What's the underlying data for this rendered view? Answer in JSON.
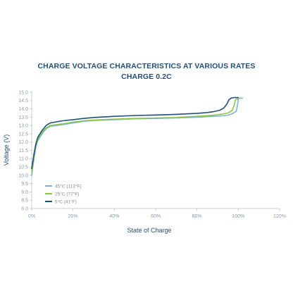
{
  "chart_data": {
    "type": "line",
    "title": "CHARGE VOLTAGE CHARACTERISTICS AT VARIOUS RATES",
    "subtitle": "CHARGE 0.2C",
    "xlabel": "State of Charge",
    "ylabel": "Voltage (V)",
    "xlim": [
      0,
      120
    ],
    "ylim": [
      8.0,
      15.0
    ],
    "x_ticks": [
      "0%",
      "20%",
      "40%",
      "60%",
      "80%",
      "100%",
      "120%"
    ],
    "y_ticks": [
      "8.0",
      "8.5",
      "9.0",
      "9.5",
      "10.0",
      "10.5",
      "11.0",
      "11.5",
      "12.0",
      "12.5",
      "13.0",
      "13.5",
      "14.0",
      "14.5",
      "15.0"
    ],
    "grid": false,
    "legend_position": "bottom-left",
    "series": [
      {
        "name": "45°C (113°F)",
        "color": "#7fb0d8",
        "points": [
          [
            0,
            10.0
          ],
          [
            1,
            10.9
          ],
          [
            2,
            11.7
          ],
          [
            3,
            12.1
          ],
          [
            5,
            12.5
          ],
          [
            7,
            12.8
          ],
          [
            9,
            12.95
          ],
          [
            12,
            13.0
          ],
          [
            15,
            13.05
          ],
          [
            20,
            13.15
          ],
          [
            25,
            13.25
          ],
          [
            30,
            13.3
          ],
          [
            40,
            13.35
          ],
          [
            50,
            13.4
          ],
          [
            60,
            13.42
          ],
          [
            70,
            13.45
          ],
          [
            80,
            13.5
          ],
          [
            88,
            13.55
          ],
          [
            92,
            13.58
          ],
          [
            95,
            13.62
          ],
          [
            97,
            13.7
          ],
          [
            99,
            13.85
          ],
          [
            99.7,
            14.3
          ],
          [
            100,
            14.6
          ],
          [
            101,
            14.65
          ],
          [
            102,
            14.65
          ]
        ]
      },
      {
        "name": "25°C (77°F)",
        "color": "#8cc63f",
        "points": [
          [
            0,
            10.2
          ],
          [
            1,
            11.0
          ],
          [
            2,
            11.8
          ],
          [
            3,
            12.2
          ],
          [
            5,
            12.6
          ],
          [
            7,
            12.85
          ],
          [
            9,
            13.0
          ],
          [
            12,
            13.05
          ],
          [
            15,
            13.1
          ],
          [
            20,
            13.2
          ],
          [
            25,
            13.28
          ],
          [
            30,
            13.33
          ],
          [
            40,
            13.38
          ],
          [
            50,
            13.42
          ],
          [
            60,
            13.45
          ],
          [
            70,
            13.48
          ],
          [
            80,
            13.55
          ],
          [
            88,
            13.62
          ],
          [
            92,
            13.68
          ],
          [
            95,
            13.75
          ],
          [
            97,
            13.9
          ],
          [
            98,
            14.2
          ],
          [
            98.5,
            14.5
          ],
          [
            99,
            14.6
          ],
          [
            100,
            14.6
          ]
        ]
      },
      {
        "name": "5°C (41°F)",
        "color": "#1f4e79",
        "points": [
          [
            0,
            10.4
          ],
          [
            1,
            11.2
          ],
          [
            2,
            11.9
          ],
          [
            3,
            12.3
          ],
          [
            5,
            12.7
          ],
          [
            7,
            13.0
          ],
          [
            9,
            13.15
          ],
          [
            12,
            13.22
          ],
          [
            15,
            13.28
          ],
          [
            20,
            13.35
          ],
          [
            25,
            13.42
          ],
          [
            30,
            13.48
          ],
          [
            40,
            13.55
          ],
          [
            50,
            13.6
          ],
          [
            60,
            13.63
          ],
          [
            70,
            13.67
          ],
          [
            80,
            13.73
          ],
          [
            85,
            13.78
          ],
          [
            88,
            13.83
          ],
          [
            91,
            13.92
          ],
          [
            93,
            14.05
          ],
          [
            94.5,
            14.3
          ],
          [
            95.5,
            14.55
          ],
          [
            96.5,
            14.65
          ],
          [
            98,
            14.68
          ],
          [
            100,
            14.68
          ]
        ]
      }
    ]
  }
}
